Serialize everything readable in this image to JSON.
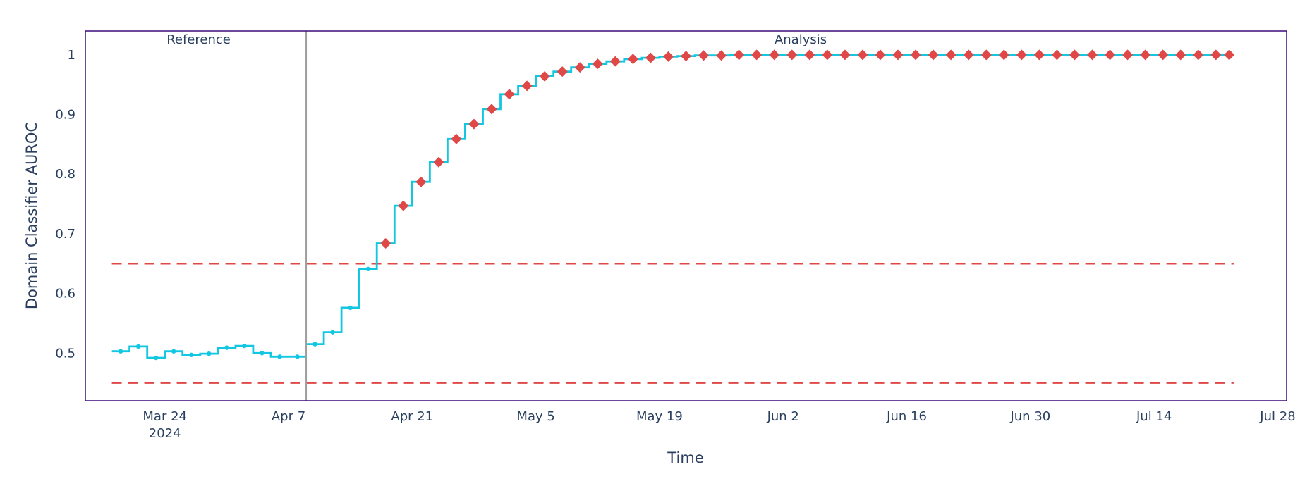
{
  "chart_data": {
    "type": "line",
    "title": "",
    "xlabel": "Time",
    "ylabel": "Domain Classifier AUROC",
    "x_ticks": [
      "Mar 24",
      "Apr 7",
      "Apr 21",
      "May 5",
      "May 19",
      "Jun 2",
      "Jun 16",
      "Jun 30",
      "Jul 14",
      "Jul 28"
    ],
    "x_tick_year": "2024",
    "y_ticks": [
      "0.5",
      "0.6",
      "0.7",
      "0.8",
      "0.9",
      "1"
    ],
    "xlim": [
      "2024-03-15",
      "2024-07-29"
    ],
    "ylim": [
      0.42,
      1.04
    ],
    "line_shape": "step",
    "grid": false,
    "periods": [
      {
        "name": "Reference",
        "start": "2024-03-18",
        "end": "2024-04-09"
      },
      {
        "name": "Analysis",
        "start": "2024-04-09",
        "end": "2024-07-23"
      }
    ],
    "thresholds": {
      "upper": 0.65,
      "lower": 0.45
    },
    "series": [
      {
        "period": "Reference",
        "x": [
          "2024-03-18",
          "2024-03-20",
          "2024-03-22",
          "2024-03-24",
          "2024-03-26",
          "2024-03-28",
          "2024-03-30",
          "2024-04-01",
          "2024-04-03",
          "2024-04-05",
          "2024-04-07"
        ],
        "y": [
          0.503,
          0.511,
          0.492,
          0.503,
          0.497,
          0.499,
          0.509,
          0.512,
          0.5,
          0.494,
          0.494
        ],
        "alert": [
          false,
          false,
          false,
          false,
          false,
          false,
          false,
          false,
          false,
          false,
          false
        ]
      },
      {
        "period": "Analysis",
        "x": [
          "2024-04-09",
          "2024-04-11",
          "2024-04-13",
          "2024-04-15",
          "2024-04-17",
          "2024-04-19",
          "2024-04-21",
          "2024-04-23",
          "2024-04-25",
          "2024-04-27",
          "2024-04-29",
          "2024-05-01",
          "2024-05-03",
          "2024-05-05",
          "2024-05-07",
          "2024-05-09",
          "2024-05-11",
          "2024-05-13",
          "2024-05-15",
          "2024-05-17",
          "2024-05-19",
          "2024-05-21",
          "2024-05-23",
          "2024-05-25",
          "2024-05-27",
          "2024-05-29",
          "2024-05-31",
          "2024-06-02",
          "2024-06-04",
          "2024-06-06",
          "2024-06-08",
          "2024-06-10",
          "2024-06-12",
          "2024-06-14",
          "2024-06-16",
          "2024-06-18",
          "2024-06-20",
          "2024-06-22",
          "2024-06-24",
          "2024-06-26",
          "2024-06-28",
          "2024-06-30",
          "2024-07-02",
          "2024-07-04",
          "2024-07-06",
          "2024-07-08",
          "2024-07-10",
          "2024-07-12",
          "2024-07-14",
          "2024-07-16",
          "2024-07-18",
          "2024-07-20",
          "2024-07-22"
        ],
        "y": [
          0.515,
          0.535,
          0.576,
          0.641,
          0.684,
          0.747,
          0.787,
          0.82,
          0.859,
          0.884,
          0.909,
          0.934,
          0.948,
          0.964,
          0.972,
          0.979,
          0.985,
          0.989,
          0.993,
          0.995,
          0.997,
          0.998,
          0.999,
          0.999,
          1.0,
          1.0,
          1.0,
          1.0,
          1.0,
          1.0,
          1.0,
          1.0,
          1.0,
          1.0,
          1.0,
          1.0,
          1.0,
          1.0,
          1.0,
          1.0,
          1.0,
          1.0,
          1.0,
          1.0,
          1.0,
          1.0,
          1.0,
          1.0,
          1.0,
          1.0,
          1.0,
          1.0,
          1.0
        ],
        "alert": [
          false,
          false,
          false,
          false,
          true,
          true,
          true,
          true,
          true,
          true,
          true,
          true,
          true,
          true,
          true,
          true,
          true,
          true,
          true,
          true,
          true,
          true,
          true,
          true,
          true,
          true,
          true,
          true,
          true,
          true,
          true,
          true,
          true,
          true,
          true,
          true,
          true,
          true,
          true,
          true,
          true,
          true,
          true,
          true,
          true,
          true,
          true,
          true,
          true,
          true,
          true,
          true,
          true
        ]
      }
    ]
  },
  "colors": {
    "line": "#13c7e2",
    "alert": "#e04848",
    "threshold": "#e04848",
    "frame": "#3b0b7a",
    "divider": "#9e9e9e",
    "text": "#2a3f5f"
  }
}
